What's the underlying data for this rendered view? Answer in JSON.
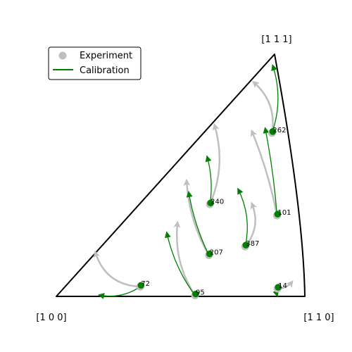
{
  "chart_data": {
    "type": "scatter",
    "corners": {
      "origin": "[1 0 0]",
      "right": "[1 1 0]",
      "top": "[1 1 1]"
    },
    "legend": {
      "placement": "top-left",
      "entries": [
        {
          "label": "Experiment",
          "marker": "circle",
          "color": "#bfbfbf"
        },
        {
          "label": "Calibration",
          "marker": "line",
          "color": "#008000"
        }
      ]
    },
    "colors": {
      "experiment": "#bfbfbf",
      "calibration": "#008000",
      "boundary": "#000000"
    },
    "grains": [
      {
        "id": "72",
        "start": [
          0.338,
          0.04
        ],
        "exp_end": [
          0.156,
          0.184
        ],
        "cal_end": [
          0.17,
          0.006
        ],
        "bend": -0.35
      },
      {
        "id": "95",
        "start": [
          0.558,
          0.004
        ],
        "exp_end": [
          0.488,
          0.307
        ],
        "cal_end": [
          0.444,
          0.266
        ],
        "bend": -0.18
      },
      {
        "id": "207",
        "start": [
          0.614,
          0.17
        ],
        "exp_end": [
          0.524,
          0.48
        ],
        "cal_end": [
          0.532,
          0.433
        ],
        "bend": -0.12
      },
      {
        "id": "240",
        "start": [
          0.618,
          0.38
        ],
        "exp_end": [
          0.636,
          0.71
        ],
        "cal_end": [
          0.606,
          0.58
        ],
        "bend": 0.18
      },
      {
        "id": "387",
        "start": [
          0.76,
          0.206
        ],
        "exp_end": [
          0.786,
          0.385
        ],
        "cal_end": [
          0.73,
          0.446
        ],
        "bend": 0.3
      },
      {
        "id": "101",
        "start": [
          0.888,
          0.334
        ],
        "exp_end": [
          0.786,
          0.684
        ],
        "cal_end": [
          0.84,
          0.697
        ],
        "bend": 0.05
      },
      {
        "id": "262",
        "start": [
          0.868,
          0.675
        ],
        "exp_end": [
          0.792,
          0.886
        ],
        "cal_end": [
          0.87,
          0.956
        ],
        "bend": 0.28
      },
      {
        "id": "14",
        "start": [
          0.89,
          0.032
        ],
        "exp_end": [
          0.95,
          0.062
        ],
        "cal_end": [
          0.89,
          0.0
        ],
        "bend": 0.25
      }
    ]
  }
}
